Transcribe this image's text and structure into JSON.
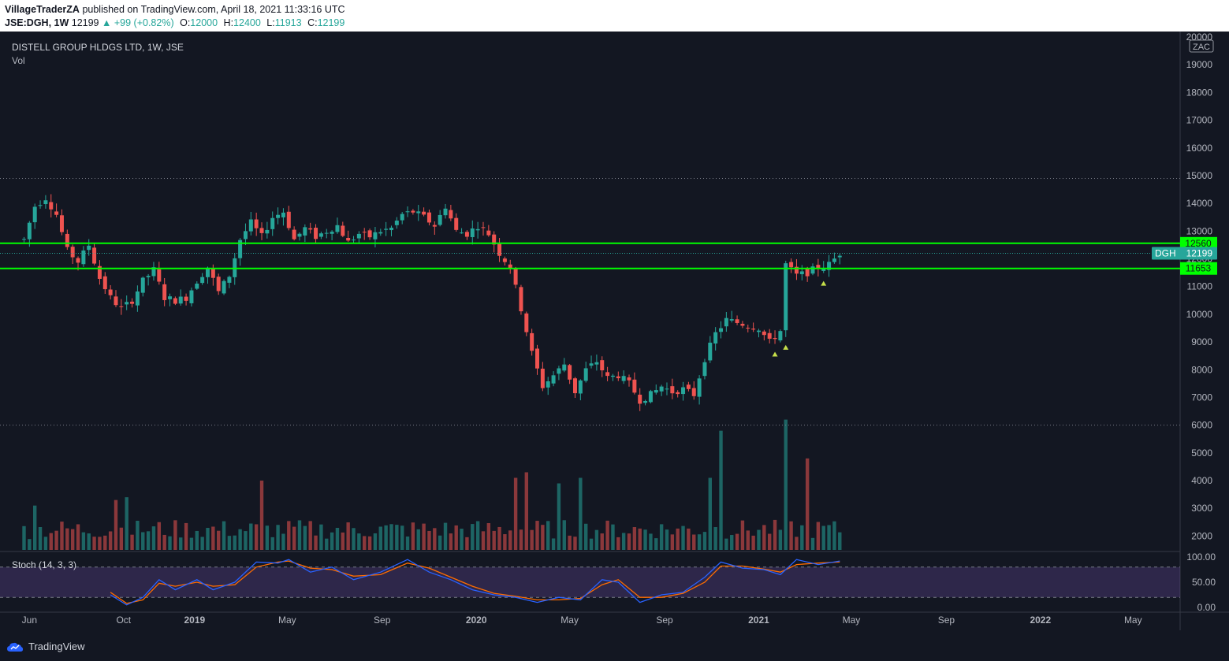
{
  "header": {
    "author": "VillageTraderZA",
    "published": "published on TradingView.com, April 18, 2021 11:33:16 UTC",
    "symbol": "JSE:DGH, 1W",
    "last": "12199",
    "change": "+99 (+0.82%)",
    "o_label": "O:",
    "o_value": "12000",
    "h_label": "H:",
    "h_value": "12400",
    "l_label": "L:",
    "l_value": "11913",
    "c_label": "C:",
    "c_value": "12199"
  },
  "legend": {
    "title": "DISTELL GROUP HLDGS LTD, 1W, JSE",
    "volume": "Vol",
    "stoch": "Stoch (14, 3, 3)"
  },
  "footer": {
    "brand": "TradingView"
  },
  "colors": {
    "background": "#131722",
    "up": "#26a69a",
    "down": "#ef5350",
    "level": "#00ff00",
    "k_line": "#2962ff",
    "d_line": "#ff6d00",
    "stoch_band": "#7e57c2"
  },
  "chart_data": {
    "type": "candlestick",
    "title": "DISTELL GROUP HLDGS LTD, 1W, JSE",
    "currency": "ZAC",
    "grid": false,
    "x_range": [
      "2018-05-01",
      "2022-07-01"
    ],
    "x_ticks": [
      {
        "label": "Jun",
        "date": "2018-06-01"
      },
      {
        "label": "Oct",
        "date": "2018-10-01"
      },
      {
        "label": "2019",
        "date": "2019-01-01"
      },
      {
        "label": "May",
        "date": "2019-05-01"
      },
      {
        "label": "Sep",
        "date": "2019-09-01"
      },
      {
        "label": "2020",
        "date": "2020-01-01"
      },
      {
        "label": "May",
        "date": "2020-05-01"
      },
      {
        "label": "Sep",
        "date": "2020-09-01"
      },
      {
        "label": "2021",
        "date": "2021-01-01"
      },
      {
        "label": "May",
        "date": "2021-05-01"
      },
      {
        "label": "Sep",
        "date": "2021-09-01"
      },
      {
        "label": "2022",
        "date": "2022-01-01"
      },
      {
        "label": "May",
        "date": "2022-05-01"
      }
    ],
    "price_axis": {
      "ylim": [
        1500,
        20000
      ],
      "ticks": [
        20000,
        19000,
        18000,
        17000,
        16000,
        15000,
        14000,
        13000,
        12000,
        11000,
        10000,
        9000,
        8000,
        7000,
        6000,
        5000,
        4000,
        3000,
        2000
      ]
    },
    "levels": [
      {
        "label": "12560",
        "value": 12560,
        "style": "solid-green"
      },
      {
        "label": "11653",
        "value": 11653,
        "style": "solid-green"
      },
      {
        "value": 14900,
        "style": "dotted"
      },
      {
        "value": 6000,
        "style": "dotted"
      }
    ],
    "last_price": {
      "symbol": "DGH",
      "value": 12199
    },
    "price_path": [
      [
        "2018-05-25",
        12700
      ],
      [
        "2018-06-08",
        13900
      ],
      [
        "2018-06-22",
        14200
      ],
      [
        "2018-07-06",
        13600
      ],
      [
        "2018-07-20",
        12300
      ],
      [
        "2018-08-03",
        11900
      ],
      [
        "2018-08-17",
        12500
      ],
      [
        "2018-08-31",
        11300
      ],
      [
        "2018-09-14",
        10600
      ],
      [
        "2018-09-28",
        10200
      ],
      [
        "2018-10-12",
        10500
      ],
      [
        "2018-10-26",
        11200
      ],
      [
        "2018-11-09",
        11600
      ],
      [
        "2018-11-23",
        10600
      ],
      [
        "2018-12-07",
        10500
      ],
      [
        "2018-12-21",
        10600
      ],
      [
        "2019-01-04",
        11200
      ],
      [
        "2019-01-18",
        11700
      ],
      [
        "2019-02-01",
        10800
      ],
      [
        "2019-02-15",
        11400
      ],
      [
        "2019-03-01",
        12700
      ],
      [
        "2019-03-15",
        13300
      ],
      [
        "2019-03-29",
        12800
      ],
      [
        "2019-04-12",
        13500
      ],
      [
        "2019-04-26",
        13700
      ],
      [
        "2019-05-10",
        12700
      ],
      [
        "2019-05-24",
        13100
      ],
      [
        "2019-06-07",
        12800
      ],
      [
        "2019-06-21",
        13000
      ],
      [
        "2019-07-05",
        13200
      ],
      [
        "2019-07-19",
        12600
      ],
      [
        "2019-08-02",
        12900
      ],
      [
        "2019-08-16",
        12800
      ],
      [
        "2019-08-30",
        13000
      ],
      [
        "2019-09-13",
        13100
      ],
      [
        "2019-09-27",
        13600
      ],
      [
        "2019-10-11",
        13700
      ],
      [
        "2019-10-25",
        13500
      ],
      [
        "2019-11-08",
        13200
      ],
      [
        "2019-11-22",
        13900
      ],
      [
        "2019-12-06",
        13000
      ],
      [
        "2019-12-20",
        12900
      ],
      [
        "2020-01-03",
        13200
      ],
      [
        "2020-01-17",
        12900
      ],
      [
        "2020-01-31",
        12200
      ],
      [
        "2020-02-14",
        11700
      ],
      [
        "2020-02-28",
        10200
      ],
      [
        "2020-03-13",
        8600
      ],
      [
        "2020-03-27",
        7400
      ],
      [
        "2020-04-10",
        7800
      ],
      [
        "2020-04-24",
        8200
      ],
      [
        "2020-05-08",
        7200
      ],
      [
        "2020-05-22",
        8000
      ],
      [
        "2020-06-05",
        8300
      ],
      [
        "2020-06-19",
        7700
      ],
      [
        "2020-07-03",
        7800
      ],
      [
        "2020-07-17",
        7500
      ],
      [
        "2020-07-31",
        6900
      ],
      [
        "2020-08-14",
        7100
      ],
      [
        "2020-08-28",
        7400
      ],
      [
        "2020-09-11",
        7200
      ],
      [
        "2020-09-25",
        7300
      ],
      [
        "2020-10-09",
        7100
      ],
      [
        "2020-10-23",
        8400
      ],
      [
        "2020-11-06",
        9300
      ],
      [
        "2020-11-20",
        9800
      ],
      [
        "2020-12-04",
        9700
      ],
      [
        "2020-12-18",
        9600
      ],
      [
        "2021-01-01",
        9500
      ],
      [
        "2021-01-15",
        9000
      ],
      [
        "2021-01-29",
        9400
      ],
      [
        "2021-02-05",
        11800
      ],
      [
        "2021-02-19",
        11400
      ],
      [
        "2021-03-05",
        11500
      ],
      [
        "2021-03-19",
        11700
      ],
      [
        "2021-04-02",
        11800
      ],
      [
        "2021-04-16",
        12199
      ]
    ],
    "buy_signals": [
      "2021-01-22",
      "2021-02-05",
      "2021-03-26"
    ],
    "volume": {
      "ylim": [
        1500,
        20000
      ],
      "peaks": [
        [
          "2018-06-08",
          3100
        ],
        [
          "2018-09-21",
          3300
        ],
        [
          "2018-10-05",
          3400
        ],
        [
          "2019-03-29",
          4000
        ],
        [
          "2020-02-21",
          4100
        ],
        [
          "2020-03-06",
          4300
        ],
        [
          "2020-04-17",
          3900
        ],
        [
          "2020-05-15",
          4100
        ],
        [
          "2020-10-30",
          4100
        ],
        [
          "2020-11-13",
          5800
        ],
        [
          "2021-02-05",
          6200
        ],
        [
          "2021-03-05",
          4800
        ]
      ],
      "baseline": 2100
    },
    "stochastic": {
      "label": "Stoch (14, 3, 3)",
      "ylim": [
        0,
        100
      ],
      "ticks": [
        {
          "label": "100.00",
          "value": 100
        },
        {
          "label": "50.00",
          "value": 50
        },
        {
          "label": "0.00",
          "value": 0
        }
      ],
      "band": [
        20,
        80
      ],
      "k": [
        [
          "2018-09-14",
          25
        ],
        [
          "2018-10-05",
          5
        ],
        [
          "2018-10-26",
          20
        ],
        [
          "2018-11-16",
          55
        ],
        [
          "2018-12-07",
          35
        ],
        [
          "2019-01-04",
          55
        ],
        [
          "2019-01-25",
          35
        ],
        [
          "2019-02-22",
          50
        ],
        [
          "2019-03-22",
          90
        ],
        [
          "2019-04-19",
          88
        ],
        [
          "2019-05-03",
          95
        ],
        [
          "2019-05-31",
          70
        ],
        [
          "2019-06-28",
          80
        ],
        [
          "2019-07-26",
          55
        ],
        [
          "2019-08-30",
          70
        ],
        [
          "2019-10-04",
          95
        ],
        [
          "2019-11-01",
          70
        ],
        [
          "2019-11-29",
          55
        ],
        [
          "2019-12-27",
          35
        ],
        [
          "2020-01-24",
          25
        ],
        [
          "2020-02-21",
          20
        ],
        [
          "2020-03-20",
          10
        ],
        [
          "2020-04-17",
          20
        ],
        [
          "2020-05-15",
          15
        ],
        [
          "2020-06-12",
          55
        ],
        [
          "2020-07-03",
          50
        ],
        [
          "2020-07-31",
          10
        ],
        [
          "2020-08-28",
          25
        ],
        [
          "2020-09-25",
          30
        ],
        [
          "2020-10-23",
          60
        ],
        [
          "2020-11-13",
          90
        ],
        [
          "2020-12-11",
          78
        ],
        [
          "2021-01-08",
          75
        ],
        [
          "2021-01-29",
          65
        ],
        [
          "2021-02-19",
          95
        ],
        [
          "2021-03-19",
          85
        ],
        [
          "2021-04-16",
          92
        ]
      ],
      "d": [
        [
          "2018-09-14",
          30
        ],
        [
          "2018-10-05",
          8
        ],
        [
          "2018-10-26",
          15
        ],
        [
          "2018-11-16",
          48
        ],
        [
          "2018-12-07",
          42
        ],
        [
          "2019-01-04",
          50
        ],
        [
          "2019-01-25",
          42
        ],
        [
          "2019-02-22",
          45
        ],
        [
          "2019-03-22",
          80
        ],
        [
          "2019-04-19",
          90
        ],
        [
          "2019-05-03",
          92
        ],
        [
          "2019-05-31",
          78
        ],
        [
          "2019-06-28",
          75
        ],
        [
          "2019-07-26",
          62
        ],
        [
          "2019-08-30",
          65
        ],
        [
          "2019-10-04",
          88
        ],
        [
          "2019-11-01",
          78
        ],
        [
          "2019-11-29",
          60
        ],
        [
          "2019-12-27",
          42
        ],
        [
          "2020-01-24",
          28
        ],
        [
          "2020-02-21",
          22
        ],
        [
          "2020-03-20",
          15
        ],
        [
          "2020-04-17",
          15
        ],
        [
          "2020-05-15",
          18
        ],
        [
          "2020-06-12",
          45
        ],
        [
          "2020-07-03",
          55
        ],
        [
          "2020-07-31",
          20
        ],
        [
          "2020-08-28",
          20
        ],
        [
          "2020-09-25",
          28
        ],
        [
          "2020-10-23",
          50
        ],
        [
          "2020-11-13",
          82
        ],
        [
          "2020-12-11",
          82
        ],
        [
          "2021-01-08",
          76
        ],
        [
          "2021-01-29",
          70
        ],
        [
          "2021-02-19",
          85
        ],
        [
          "2021-03-19",
          88
        ],
        [
          "2021-04-16",
          90
        ]
      ]
    }
  }
}
